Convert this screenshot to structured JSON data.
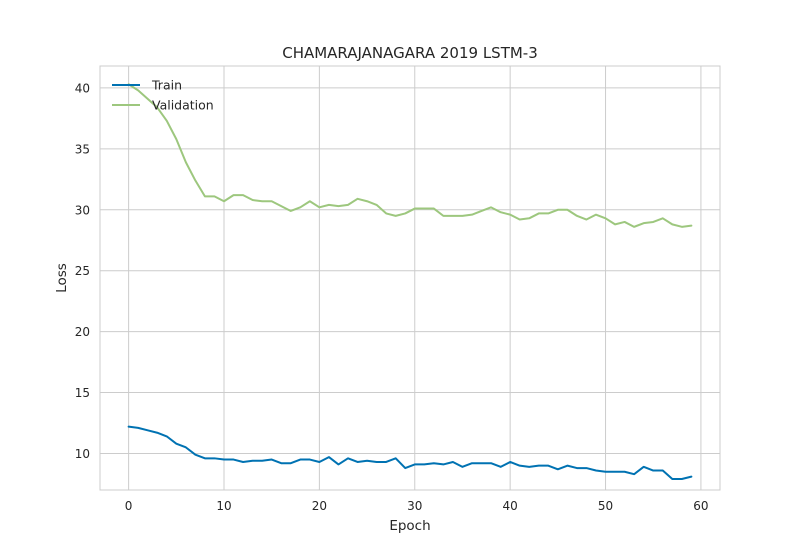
{
  "chart_data": {
    "type": "line",
    "title": "CHAMARAJANAGARA 2019 LSTM-3",
    "xlabel": "Epoch",
    "ylabel": "Loss",
    "xlim": [
      -3,
      62
    ],
    "ylim": [
      7.0,
      41.8
    ],
    "xticks": [
      0,
      10,
      20,
      30,
      40,
      50,
      60
    ],
    "yticks": [
      10,
      15,
      20,
      25,
      30,
      35,
      40
    ],
    "grid": true,
    "legend_position": "top-left",
    "series": [
      {
        "name": "Train",
        "color": "#0072b2",
        "x": [
          0,
          1,
          2,
          3,
          4,
          5,
          6,
          7,
          8,
          9,
          10,
          11,
          12,
          13,
          14,
          15,
          16,
          17,
          18,
          19,
          20,
          21,
          22,
          23,
          24,
          25,
          26,
          27,
          28,
          29,
          30,
          31,
          32,
          33,
          34,
          35,
          36,
          37,
          38,
          39,
          40,
          41,
          42,
          43,
          44,
          45,
          46,
          47,
          48,
          49,
          50,
          51,
          52,
          53,
          54,
          55,
          56,
          57,
          58,
          59
        ],
        "values": [
          12.2,
          12.1,
          11.9,
          11.7,
          11.4,
          10.8,
          10.5,
          9.9,
          9.6,
          9.6,
          9.5,
          9.5,
          9.3,
          9.4,
          9.4,
          9.5,
          9.2,
          9.2,
          9.5,
          9.5,
          9.3,
          9.7,
          9.1,
          9.6,
          9.3,
          9.4,
          9.3,
          9.3,
          9.6,
          8.8,
          9.1,
          9.1,
          9.2,
          9.1,
          9.3,
          8.9,
          9.2,
          9.2,
          9.2,
          8.9,
          9.3,
          9.0,
          8.9,
          9.0,
          9.0,
          8.7,
          9.0,
          8.8,
          8.8,
          8.6,
          8.5,
          8.5,
          8.5,
          8.3,
          8.9,
          8.6,
          8.6,
          7.9,
          7.9,
          8.1
        ]
      },
      {
        "name": "Validation",
        "color": "#9dc77e",
        "x": [
          0,
          1,
          2,
          3,
          4,
          5,
          6,
          7,
          8,
          9,
          10,
          11,
          12,
          13,
          14,
          15,
          16,
          17,
          18,
          19,
          20,
          21,
          22,
          23,
          24,
          25,
          26,
          27,
          28,
          29,
          30,
          31,
          32,
          33,
          34,
          35,
          36,
          37,
          38,
          39,
          40,
          41,
          42,
          43,
          44,
          45,
          46,
          47,
          48,
          49,
          50,
          51,
          52,
          53,
          54,
          55,
          56,
          57,
          58,
          59
        ],
        "values": [
          40.3,
          39.8,
          39.1,
          38.4,
          37.3,
          35.8,
          33.9,
          32.4,
          31.1,
          31.1,
          30.7,
          31.2,
          31.2,
          30.8,
          30.7,
          30.7,
          30.3,
          29.9,
          30.2,
          30.7,
          30.2,
          30.4,
          30.3,
          30.4,
          30.9,
          30.7,
          30.4,
          29.7,
          29.5,
          29.7,
          30.1,
          30.1,
          30.1,
          29.5,
          29.5,
          29.5,
          29.6,
          29.9,
          30.2,
          29.8,
          29.6,
          29.2,
          29.3,
          29.7,
          29.7,
          30.0,
          30.0,
          29.5,
          29.2,
          29.6,
          29.3,
          28.8,
          29.0,
          28.6,
          28.9,
          29.0,
          29.3,
          28.8,
          28.6,
          28.7
        ]
      }
    ]
  }
}
